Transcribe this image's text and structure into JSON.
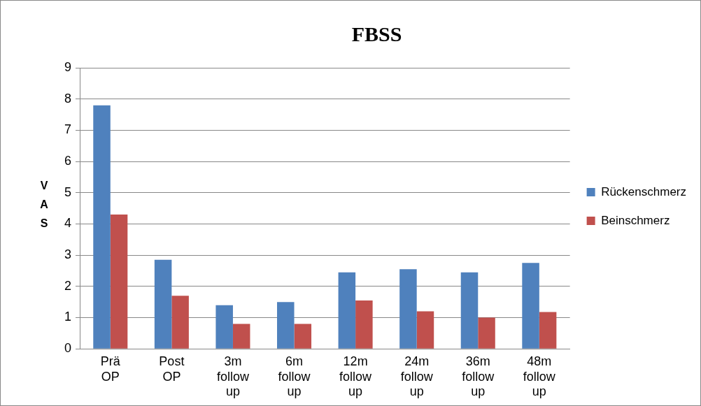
{
  "chart_data": {
    "type": "bar",
    "title": "FBSS",
    "ylabel": "VAS",
    "categories": [
      "Prä OP",
      "Post OP",
      "3m follow up",
      "6m follow up",
      "12m follow up",
      "24m follow up",
      "36m follow up",
      "48m follow up"
    ],
    "series": [
      {
        "name": "Rückenschmerz",
        "color": "#4f81bd",
        "values": [
          7.8,
          2.85,
          1.4,
          1.5,
          2.45,
          2.55,
          2.45,
          2.75
        ]
      },
      {
        "name": "Beinschmerz",
        "color": "#c0504d",
        "values": [
          4.3,
          1.7,
          0.8,
          0.8,
          1.55,
          1.2,
          1.0,
          1.18
        ]
      }
    ],
    "ylim": [
      0,
      9
    ],
    "yticks": [
      0,
      1,
      2,
      3,
      4,
      5,
      6,
      7,
      8,
      9
    ],
    "grid": "y",
    "legend": "right"
  }
}
